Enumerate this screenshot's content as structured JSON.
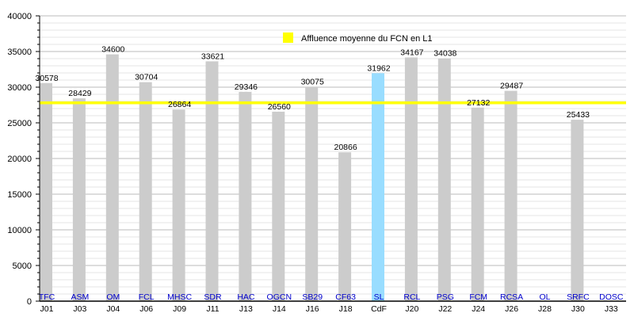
{
  "chart_data": {
    "type": "bar",
    "title": "",
    "xlabel": "",
    "ylabel": "",
    "ylim": [
      0,
      40000
    ],
    "y_ticks": [
      0,
      5000,
      10000,
      15000,
      20000,
      25000,
      30000,
      35000,
      40000
    ],
    "grid": true,
    "categories": [
      "J01",
      "J03",
      "J04",
      "J06",
      "J09",
      "J11",
      "J13",
      "J14",
      "J16",
      "J18",
      "CdF",
      "J20",
      "J22",
      "J24",
      "J26",
      "J28",
      "J30",
      "J33"
    ],
    "opponents": [
      "TFC",
      "ASM",
      "OM",
      "FCL",
      "MHSC",
      "SDR",
      "HAC",
      "OGCN",
      "SB29",
      "CF63",
      "SL",
      "RCL",
      "PSG",
      "FCM",
      "RCSA",
      "OL",
      "SRFC",
      "DOSC"
    ],
    "values": [
      30578,
      28429,
      34600,
      30704,
      26864,
      33621,
      29346,
      26560,
      30075,
      20866,
      31962,
      34167,
      34038,
      27132,
      29487,
      null,
      25433,
      null
    ],
    "highlight_category": "CdF",
    "colors": {
      "bar": "#cccccc",
      "highlight": "#99ddff",
      "average": "#ffff00",
      "opponent_text": "#0000cc"
    },
    "average": {
      "label": "Affluence moyenne du FCN en L1",
      "value": 27800
    },
    "legend_position": "top-center"
  }
}
